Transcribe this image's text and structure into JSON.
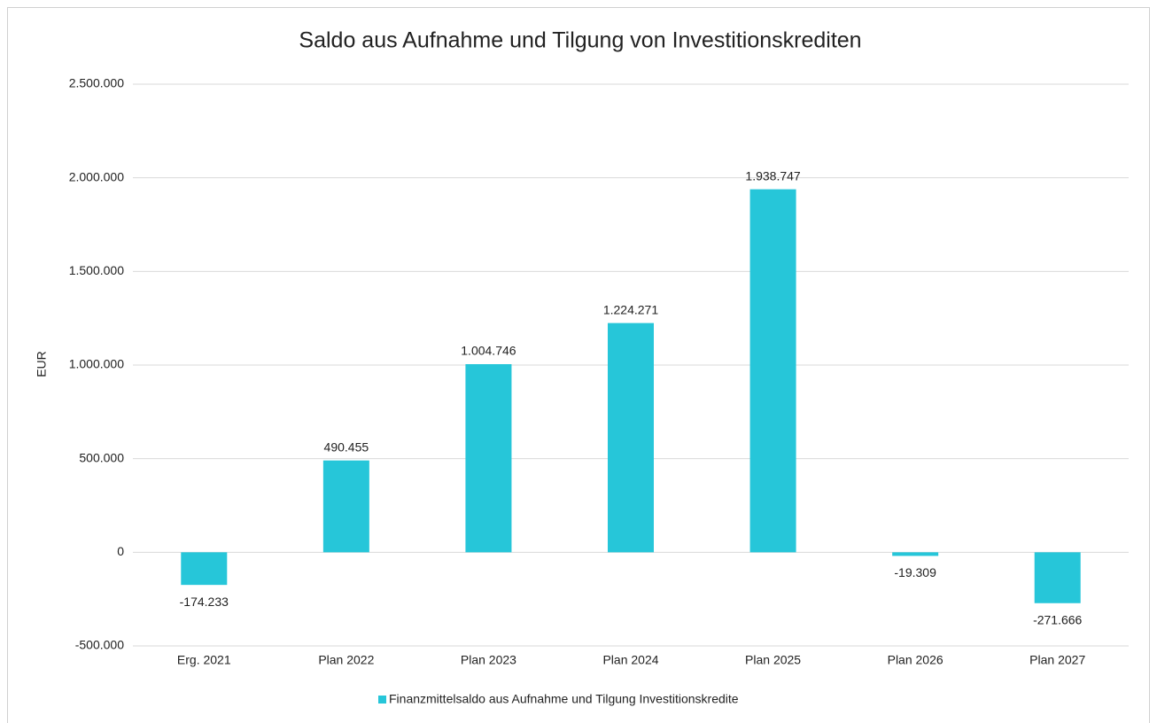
{
  "chart_data": {
    "type": "bar",
    "title": "Saldo aus Aufnahme und Tilgung von Investitionskrediten",
    "ylabel": "EUR",
    "categories": [
      "Erg. 2021",
      "Plan 2022",
      "Plan 2023",
      "Plan 2024",
      "Plan 2025",
      "Plan 2026",
      "Plan 2027"
    ],
    "series": [
      {
        "name": "Finanzmittelsaldo aus Aufnahme und Tilgung Investitionskredite",
        "color": "#26c6d9",
        "values": [
          -174233,
          490455,
          1004746,
          1224271,
          1938747,
          -19309,
          -271666
        ],
        "value_labels": [
          "-174.233",
          "490.455",
          "1.004.746",
          "1.224.271",
          "1.938.747",
          "-19.309",
          "-271.666"
        ]
      }
    ],
    "ylim": [
      -500000,
      2500000
    ],
    "yticks": [
      {
        "value": -500000,
        "label": "-500.000"
      },
      0,
      {
        "value": 500000,
        "label": "500.000"
      },
      {
        "value": 1000000,
        "label": "1.000.000"
      },
      {
        "value": 1500000,
        "label": "1.500.000"
      },
      {
        "value": 2000000,
        "label": "2.000.000"
      },
      {
        "value": 2500000,
        "label": "2.500.000"
      }
    ],
    "grid": true,
    "legend": "bottom"
  }
}
